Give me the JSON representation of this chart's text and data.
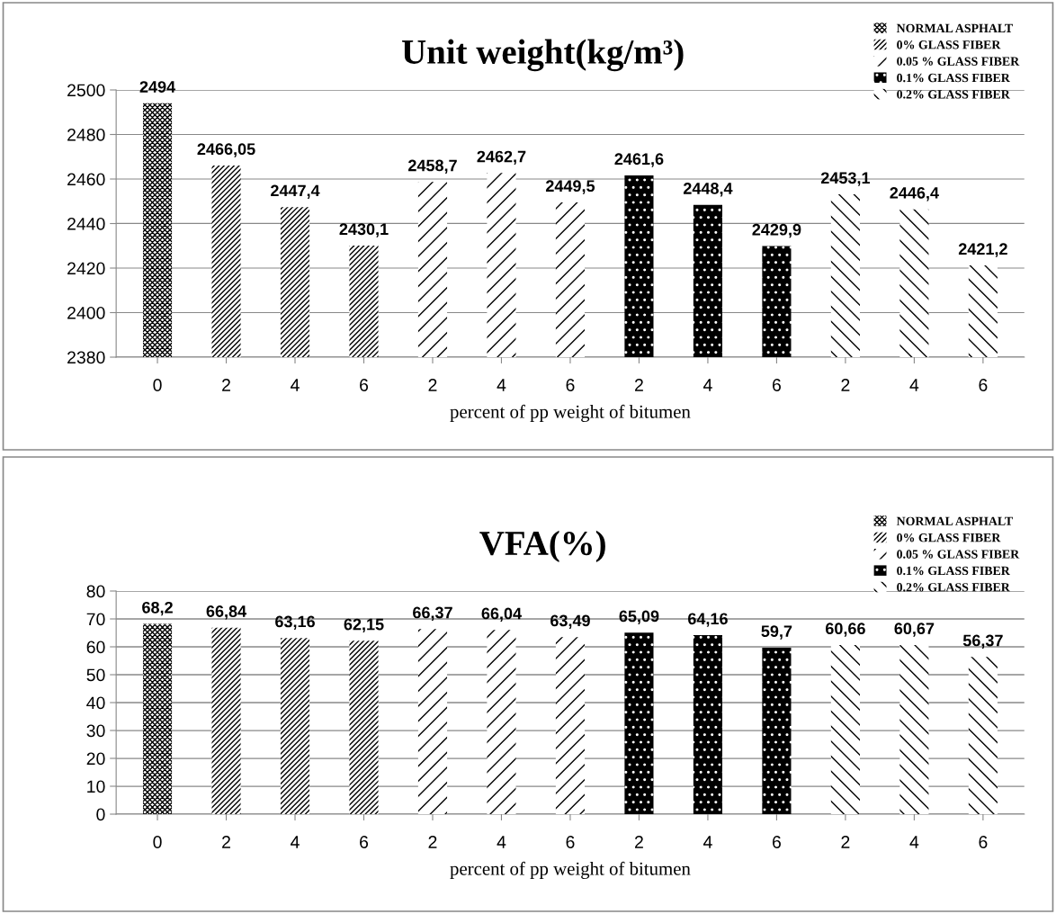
{
  "chart_data": [
    {
      "type": "bar",
      "title": "Unit weight(kg/m³)",
      "xlabel": "percent of pp weight of bitumen",
      "categories": [
        "0",
        "2",
        "4",
        "6",
        "2",
        "4",
        "6",
        "2",
        "4",
        "6",
        "2",
        "4",
        "6"
      ],
      "ylim": [
        2380,
        2500
      ],
      "yticks": [
        2380,
        2400,
        2420,
        2440,
        2460,
        2480,
        2500
      ],
      "grid": "y",
      "legend": "top right",
      "series": [
        {
          "name": "NORMAL ASPHALT",
          "color": "#000000",
          "values": [
            2494,
            null,
            null,
            null,
            null,
            null,
            null,
            null,
            null,
            null,
            null,
            null,
            null
          ],
          "value_labels": [
            "2494",
            null,
            null,
            null,
            null,
            null,
            null,
            null,
            null,
            null,
            null,
            null,
            null
          ]
        },
        {
          "name": "0% GLASS FIBER",
          "color": "#000000",
          "values": [
            null,
            2466.05,
            2447.4,
            2430.1,
            null,
            null,
            null,
            null,
            null,
            null,
            null,
            null,
            null
          ],
          "value_labels": [
            null,
            "2466,05",
            "2447,4",
            "2430,1",
            null,
            null,
            null,
            null,
            null,
            null,
            null,
            null,
            null
          ]
        },
        {
          "name": "0.05 % GLASS FIBER",
          "color": "#000000",
          "values": [
            null,
            null,
            null,
            null,
            2458.7,
            2462.7,
            2449.5,
            null,
            null,
            null,
            null,
            null,
            null
          ],
          "value_labels": [
            null,
            null,
            null,
            null,
            "2458,7",
            "2462,7",
            "2449,5",
            null,
            null,
            null,
            null,
            null,
            null
          ]
        },
        {
          "name": "0.1% GLASS FIBER",
          "color": "#000000",
          "values": [
            null,
            null,
            null,
            null,
            null,
            null,
            null,
            2461.6,
            2448.4,
            2429.9,
            null,
            null,
            null
          ],
          "value_labels": [
            null,
            null,
            null,
            null,
            null,
            null,
            null,
            "2461,6",
            "2448,4",
            "2429,9",
            null,
            null,
            null
          ]
        },
        {
          "name": "0.2% GLASS FIBER",
          "color": "#000000",
          "values": [
            null,
            null,
            null,
            null,
            null,
            null,
            null,
            null,
            null,
            null,
            2453.1,
            2446.4,
            2421.2
          ],
          "value_labels": [
            null,
            null,
            null,
            null,
            null,
            null,
            null,
            null,
            null,
            null,
            "2453,1",
            "2446,4",
            "2421,2"
          ]
        }
      ]
    },
    {
      "type": "bar",
      "title": "VFA(%)",
      "xlabel": "percent of pp weight of bitumen",
      "categories": [
        "0",
        "2",
        "4",
        "6",
        "2",
        "4",
        "6",
        "2",
        "4",
        "6",
        "2",
        "4",
        "6"
      ],
      "ylim": [
        0,
        80
      ],
      "yticks": [
        0,
        10,
        20,
        30,
        40,
        50,
        60,
        70,
        80
      ],
      "grid": "y",
      "legend": "top right",
      "series": [
        {
          "name": "NORMAL ASPHALT",
          "color": "#000000",
          "values": [
            68.2,
            null,
            null,
            null,
            null,
            null,
            null,
            null,
            null,
            null,
            null,
            null,
            null
          ],
          "value_labels": [
            "68,2",
            null,
            null,
            null,
            null,
            null,
            null,
            null,
            null,
            null,
            null,
            null,
            null
          ]
        },
        {
          "name": "0% GLASS FIBER",
          "color": "#000000",
          "values": [
            null,
            66.84,
            63.16,
            62.15,
            null,
            null,
            null,
            null,
            null,
            null,
            null,
            null,
            null
          ],
          "value_labels": [
            null,
            "66,84",
            "63,16",
            "62,15",
            null,
            null,
            null,
            null,
            null,
            null,
            null,
            null,
            null
          ]
        },
        {
          "name": "0.05 % GLASS FIBER",
          "color": "#000000",
          "values": [
            null,
            null,
            null,
            null,
            66.37,
            66.04,
            63.49,
            null,
            null,
            null,
            null,
            null,
            null
          ],
          "value_labels": [
            null,
            null,
            null,
            null,
            "66,37",
            "66,04",
            "63,49",
            null,
            null,
            null,
            null,
            null,
            null
          ]
        },
        {
          "name": "0.1% GLASS FIBER",
          "color": "#000000",
          "values": [
            null,
            null,
            null,
            null,
            null,
            null,
            null,
            65.09,
            64.16,
            59.7,
            null,
            null,
            null
          ],
          "value_labels": [
            null,
            null,
            null,
            null,
            null,
            null,
            null,
            "65,09",
            "64,16",
            "59,7",
            null,
            null,
            null
          ]
        },
        {
          "name": "0.2% GLASS FIBER",
          "color": "#000000",
          "values": [
            null,
            null,
            null,
            null,
            null,
            null,
            null,
            null,
            null,
            null,
            60.66,
            60.67,
            56.37
          ],
          "value_labels": [
            null,
            null,
            null,
            null,
            null,
            null,
            null,
            null,
            null,
            null,
            "60,66",
            "60,67",
            "56,37"
          ]
        }
      ]
    }
  ]
}
